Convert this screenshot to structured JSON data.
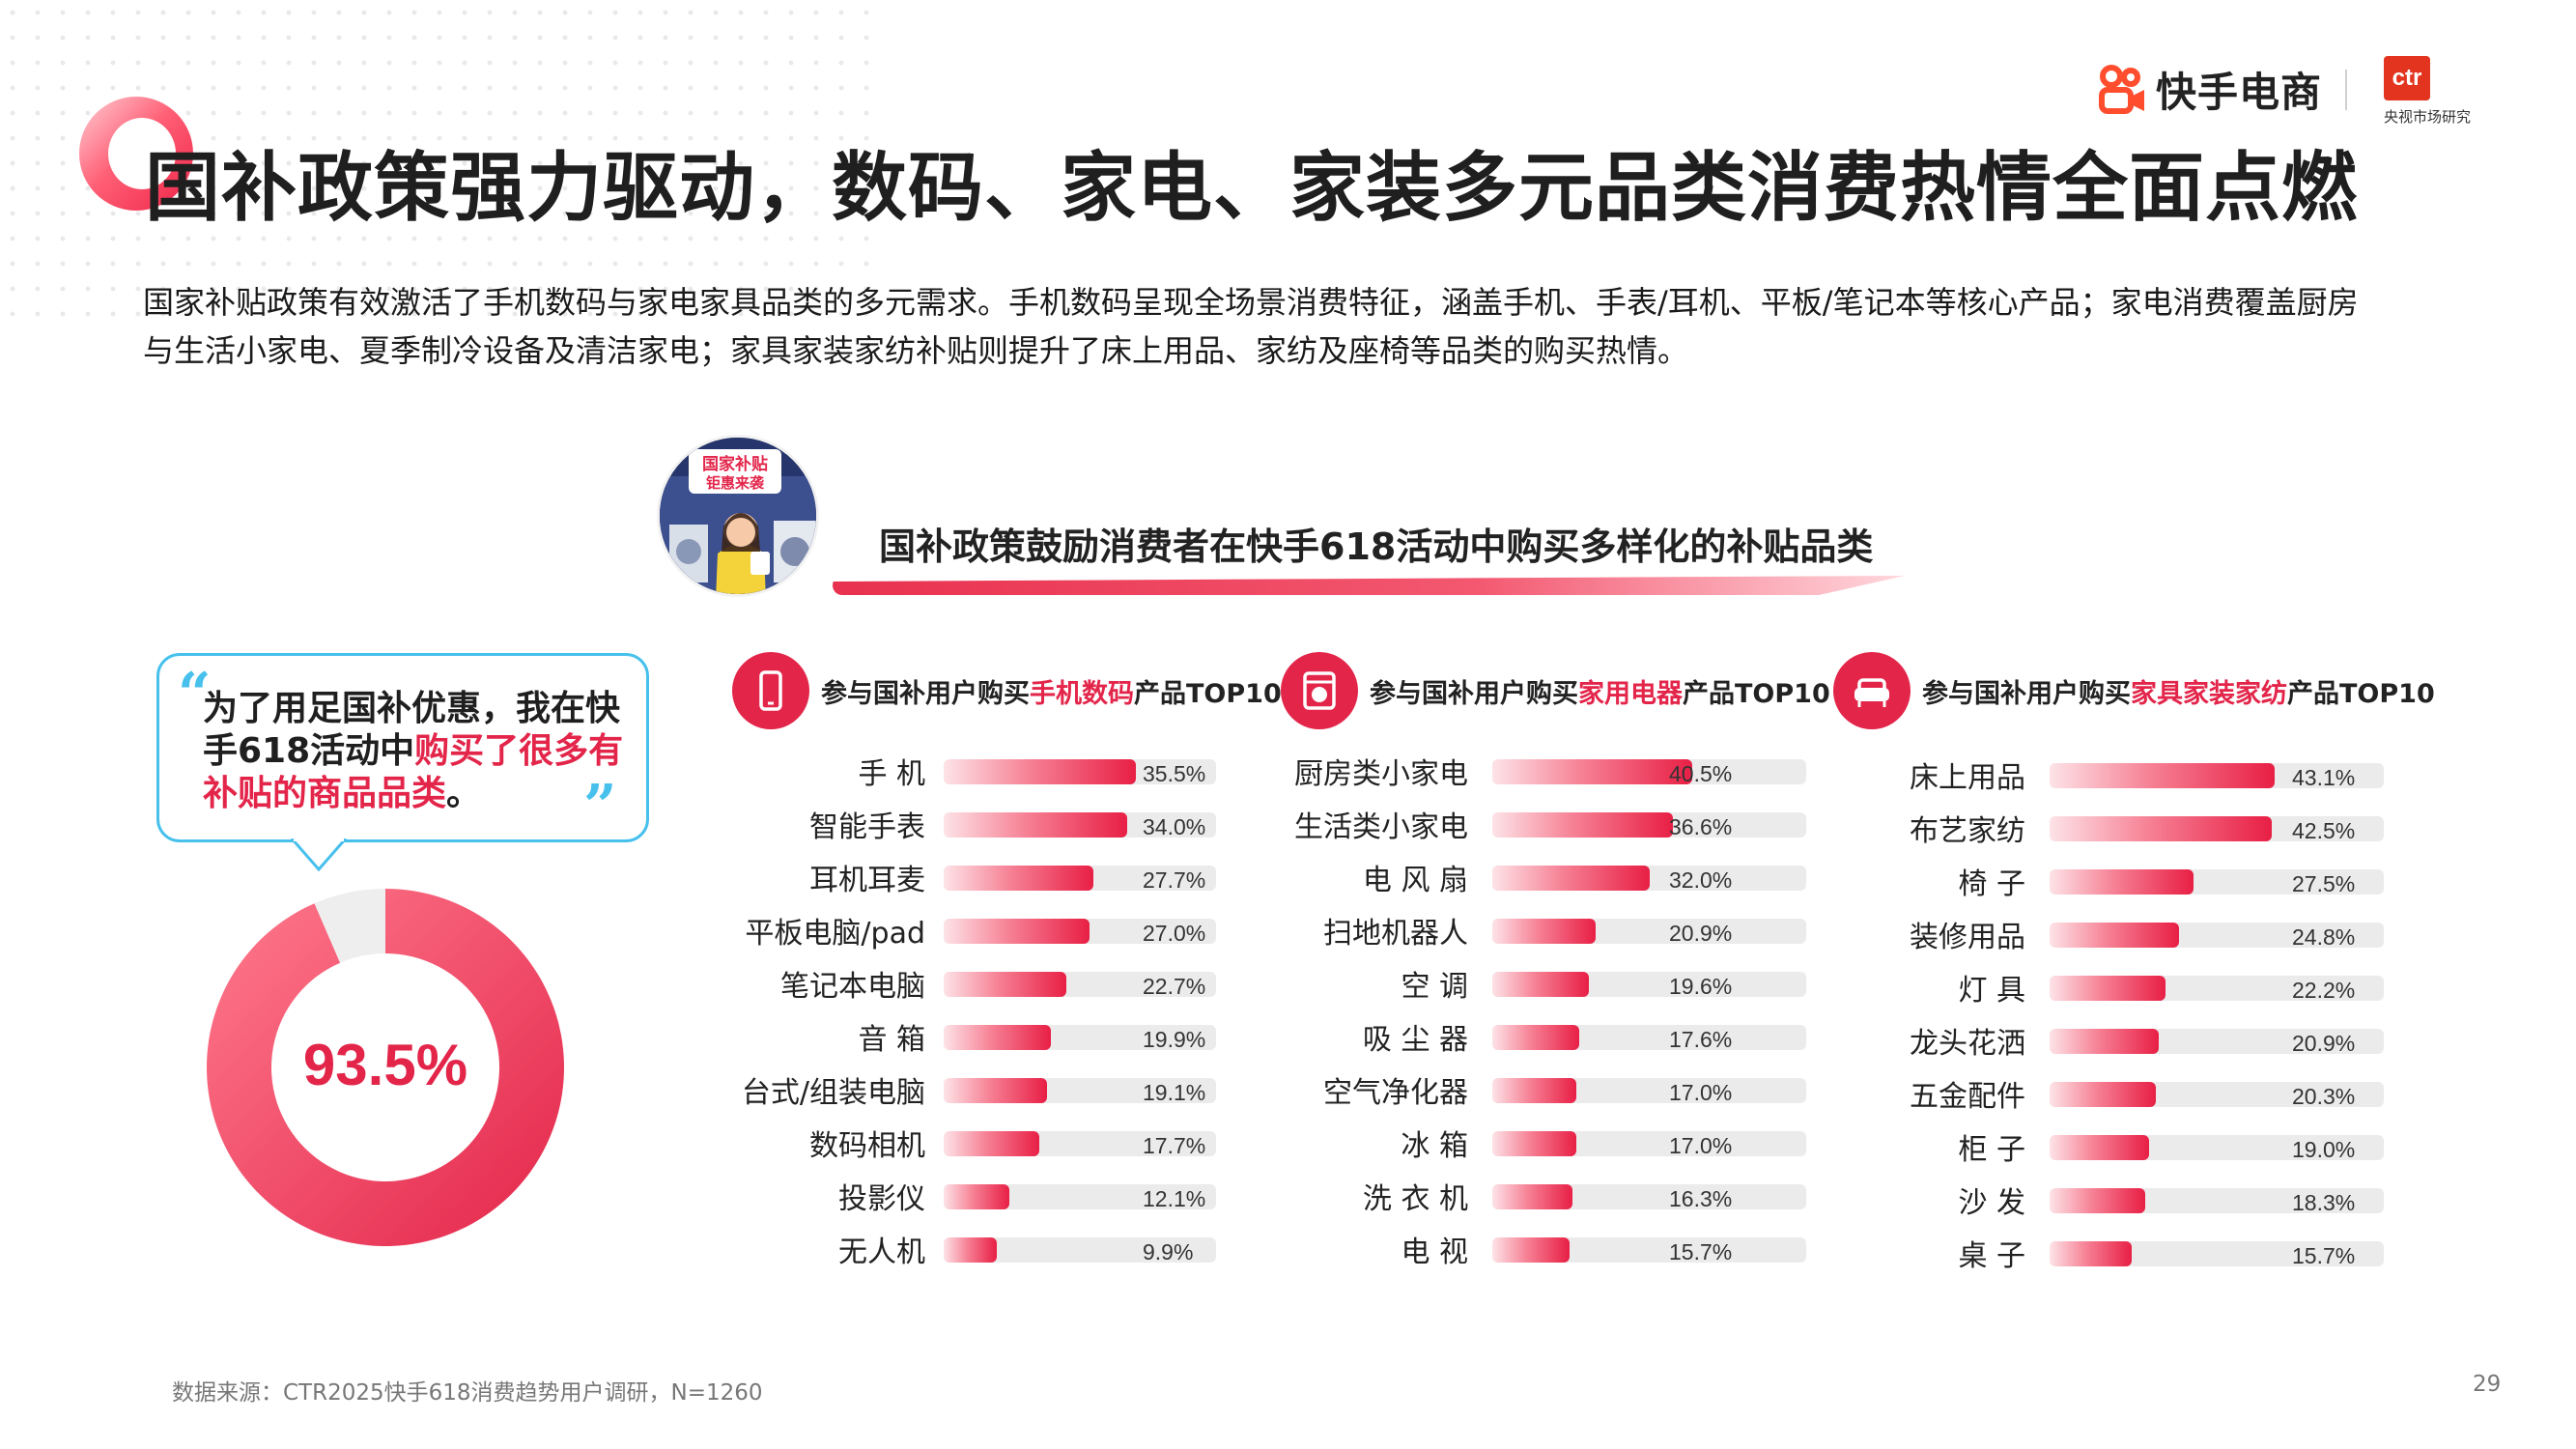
{
  "header": {
    "kuaishou_logo_text": "快手电商",
    "ctr_logo_text": "ctr",
    "ctr_logo_subtitle": "央视市场研究",
    "brand_color": "#e3254a"
  },
  "title": "国补政策强力驱动，数码、家电、家装多元品类消费热情全面点燃",
  "intro": "国家补贴政策有效激活了手机数码与家电家具品类的多元需求。手机数码呈现全场景消费特征，涵盖手机、手表/耳机、平板/笔记本等核心产品；家电消费覆盖厨房与生活小家电、夏季制冷设备及清洁家电；家具家装家纺补贴则提升了床上用品、家纺及座椅等品类的购买热情。",
  "banner": {
    "title": "国补政策鼓励消费者在快手618活动中购买多样化的补贴品类",
    "avatar_sign_line1": "国家补贴",
    "avatar_sign_line2": "钜惠来袭"
  },
  "quote": {
    "open_mark": "“",
    "close_mark": "”",
    "text_plain": "为了用足国补优惠，我在快手618活动中",
    "text_highlight": "购买了很多有补贴的商品品类",
    "text_end": "。"
  },
  "donut": {
    "value": 93.5,
    "label": "93.5%"
  },
  "panels": [
    {
      "title_prefix": "参与国补用户购买",
      "title_highlight": "手机数码",
      "title_suffix": "产品TOP10",
      "icon": "phone-icon"
    },
    {
      "title_prefix": "参与国补用户购买",
      "title_highlight": "家用电器",
      "title_suffix": "产品TOP10",
      "icon": "washing-machine-icon"
    },
    {
      "title_prefix": "参与国补用户购买",
      "title_highlight": "家具家装家纺",
      "title_suffix": "产品TOP10",
      "icon": "sofa-icon"
    }
  ],
  "chart_data": [
    {
      "type": "bar",
      "title": "参与国补用户购买手机数码产品TOP10",
      "categories": [
        "手 机",
        "智能手表",
        "耳机耳麦",
        "平板电脑/pad",
        "笔记本电脑",
        "音 箱",
        "台式/组装电脑",
        "数码相机",
        "投影仪",
        "无人机"
      ],
      "values": [
        35.5,
        34.0,
        27.7,
        27.0,
        22.7,
        19.9,
        19.1,
        17.7,
        12.1,
        9.9
      ],
      "value_labels": [
        "35.5%",
        "34.0%",
        "27.7%",
        "27.0%",
        "22.7%",
        "19.9%",
        "19.1%",
        "17.7%",
        "12.1%",
        "9.9%"
      ],
      "orientation": "horizontal",
      "xlim": [
        0,
        50
      ]
    },
    {
      "type": "bar",
      "title": "参与国补用户购买家用电器产品TOP10",
      "categories": [
        "厨房类小家电",
        "生活类小家电",
        "电 风 扇",
        "扫地机器人",
        "空 调",
        "吸 尘 器",
        "空气净化器",
        "冰 箱",
        "洗 衣 机",
        "电 视"
      ],
      "values": [
        40.5,
        36.6,
        32.0,
        20.9,
        19.6,
        17.6,
        17.0,
        17.0,
        16.3,
        15.7
      ],
      "value_labels": [
        "40.5%",
        "36.6%",
        "32.0%",
        "20.9%",
        "19.6%",
        "17.6%",
        "17.0%",
        "17.0%",
        "16.3%",
        "15.7%"
      ],
      "orientation": "horizontal",
      "xlim": [
        0,
        50
      ]
    },
    {
      "type": "bar",
      "title": "参与国补用户购买家具家装家纺产品TOP10",
      "categories": [
        "床上用品",
        "布艺家纺",
        "椅 子",
        "装修用品",
        "灯 具",
        "龙头花洒",
        "五金配件",
        "柜 子",
        "沙 发",
        "桌 子"
      ],
      "values": [
        43.1,
        42.5,
        27.5,
        24.8,
        22.2,
        20.9,
        20.3,
        19.0,
        18.3,
        15.7
      ],
      "value_labels": [
        "43.1%",
        "42.5%",
        "27.5%",
        "24.8%",
        "22.2%",
        "20.9%",
        "20.3%",
        "19.0%",
        "18.3%",
        "15.7%"
      ],
      "orientation": "horizontal",
      "xlim": [
        0,
        50
      ]
    },
    {
      "type": "pie",
      "title": "",
      "values": [
        93.5,
        6.5
      ],
      "value_labels": [
        "93.5%"
      ],
      "colors": [
        "#e3254a",
        "#eeeeee"
      ]
    }
  ],
  "footer": {
    "source": "数据来源：CTR2025快手618消费趋势用户调研，N=1260",
    "page_number": "29"
  }
}
